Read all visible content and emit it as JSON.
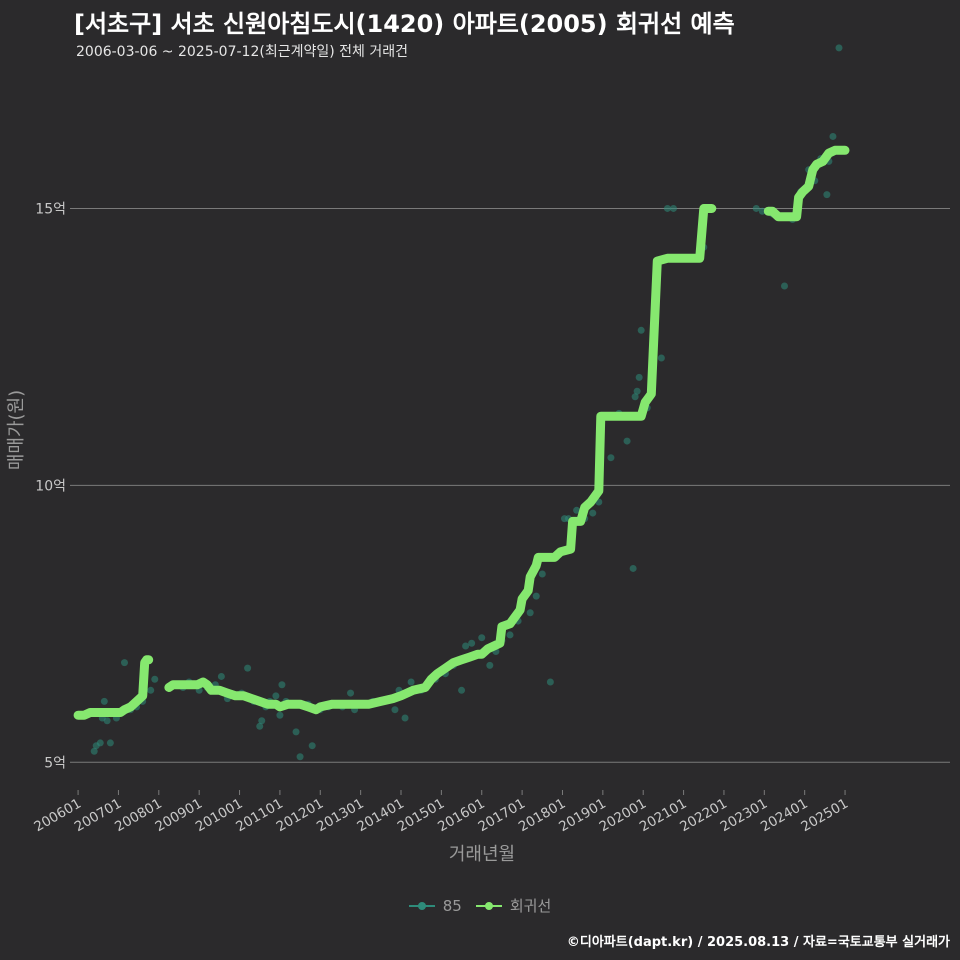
{
  "header": {
    "title": "[서초구] 서초 신원아침도시(1420) 아파트(2005) 회귀선 예측",
    "subtitle": "2006-03-06 ~ 2025-07-12(최근계약일) 전체 거래건"
  },
  "caption": "©디아파트(dapt.kr) / 2025.08.13 / 자료=국토교통부 실거래가",
  "colors": {
    "background": "#2b2a2c",
    "grid": "#7a7a7a",
    "scatter": "#2e8b7a",
    "regression": "#86e86f",
    "axis_text": "#c8c8c8"
  },
  "legend": {
    "items": [
      {
        "label": "85",
        "color": "#2e8b7a"
      },
      {
        "label": "회귀선",
        "color": "#86e86f"
      }
    ]
  },
  "chart_data": {
    "type": "scatter",
    "title": "[서초구] 서초 신원아침도시(1420) 아파트(2005) 회귀선 예측",
    "xlabel": "거래년월",
    "ylabel": "매매가(원)",
    "xlim": [
      2005.8,
      2027.6
    ],
    "ylim": [
      4.5,
      17.5
    ],
    "x_ticks": [
      {
        "value": 2006.0,
        "label": "200601"
      },
      {
        "value": 2007.0,
        "label": "200701"
      },
      {
        "value": 2008.0,
        "label": "200801"
      },
      {
        "value": 2009.0,
        "label": "200901"
      },
      {
        "value": 2010.0,
        "label": "201001"
      },
      {
        "value": 2011.0,
        "label": "201101"
      },
      {
        "value": 2012.0,
        "label": "201201"
      },
      {
        "value": 2013.0,
        "label": "201301"
      },
      {
        "value": 2014.0,
        "label": "201401"
      },
      {
        "value": 2015.0,
        "label": "201501"
      },
      {
        "value": 2016.0,
        "label": "201601"
      },
      {
        "value": 2017.0,
        "label": "201701"
      },
      {
        "value": 2018.0,
        "label": "201801"
      },
      {
        "value": 2019.0,
        "label": "201901"
      },
      {
        "value": 2020.0,
        "label": "202001"
      },
      {
        "value": 2021.0,
        "label": "202101"
      },
      {
        "value": 2022.0,
        "label": "202201"
      },
      {
        "value": 2023.0,
        "label": "202301"
      },
      {
        "value": 2024.0,
        "label": "202401"
      },
      {
        "value": 2025.0,
        "label": "202501"
      }
    ],
    "y_ticks": [
      {
        "value": 5,
        "label": "5억"
      },
      {
        "value": 10,
        "label": "10억"
      },
      {
        "value": 15,
        "label": "15억"
      }
    ],
    "series": [
      {
        "name": "85",
        "kind": "scatter",
        "points": [
          [
            2006.2,
            5.85
          ],
          [
            2006.35,
            5.9
          ],
          [
            2006.4,
            5.2
          ],
          [
            2006.45,
            5.3
          ],
          [
            2006.55,
            5.35
          ],
          [
            2006.6,
            5.8
          ],
          [
            2006.65,
            6.1
          ],
          [
            2006.72,
            5.75
          ],
          [
            2006.8,
            5.35
          ],
          [
            2006.95,
            5.8
          ],
          [
            2007.15,
            6.8
          ],
          [
            2007.3,
            5.95
          ],
          [
            2007.45,
            6.0
          ],
          [
            2007.6,
            6.1
          ],
          [
            2007.8,
            6.3
          ],
          [
            2007.9,
            6.5
          ],
          [
            2008.6,
            6.35
          ],
          [
            2008.75,
            6.45
          ],
          [
            2009.0,
            6.3
          ],
          [
            2009.2,
            6.35
          ],
          [
            2009.4,
            6.4
          ],
          [
            2009.55,
            6.55
          ],
          [
            2009.7,
            6.15
          ],
          [
            2009.85,
            6.2
          ],
          [
            2010.05,
            6.25
          ],
          [
            2010.2,
            6.7
          ],
          [
            2010.35,
            6.1
          ],
          [
            2010.5,
            5.65
          ],
          [
            2010.55,
            5.75
          ],
          [
            2010.65,
            6.0
          ],
          [
            2010.75,
            6.1
          ],
          [
            2010.9,
            6.2
          ],
          [
            2011.0,
            5.85
          ],
          [
            2011.05,
            6.4
          ],
          [
            2011.15,
            6.1
          ],
          [
            2011.4,
            5.55
          ],
          [
            2011.5,
            5.1
          ],
          [
            2011.7,
            6.05
          ],
          [
            2011.8,
            5.3
          ],
          [
            2012.0,
            5.95
          ],
          [
            2012.2,
            6.0
          ],
          [
            2012.4,
            6.05
          ],
          [
            2012.55,
            6.0
          ],
          [
            2012.75,
            6.25
          ],
          [
            2012.85,
            5.95
          ],
          [
            2013.15,
            6.05
          ],
          [
            2013.3,
            6.1
          ],
          [
            2013.5,
            6.1
          ],
          [
            2013.7,
            6.15
          ],
          [
            2013.85,
            5.95
          ],
          [
            2013.95,
            6.3
          ],
          [
            2014.1,
            5.8
          ],
          [
            2014.25,
            6.45
          ],
          [
            2014.5,
            6.3
          ],
          [
            2014.65,
            6.4
          ],
          [
            2014.85,
            6.5
          ],
          [
            2015.1,
            6.6
          ],
          [
            2015.3,
            6.75
          ],
          [
            2015.5,
            6.3
          ],
          [
            2015.6,
            7.1
          ],
          [
            2015.75,
            7.15
          ],
          [
            2015.95,
            6.95
          ],
          [
            2016.0,
            7.25
          ],
          [
            2016.2,
            6.75
          ],
          [
            2016.35,
            7.0
          ],
          [
            2016.5,
            7.2
          ],
          [
            2016.7,
            7.3
          ],
          [
            2016.9,
            7.55
          ],
          [
            2017.2,
            7.7
          ],
          [
            2017.35,
            8.0
          ],
          [
            2017.5,
            8.4
          ],
          [
            2017.7,
            6.45
          ],
          [
            2017.85,
            8.7
          ],
          [
            2018.05,
            9.4
          ],
          [
            2018.15,
            9.4
          ],
          [
            2018.25,
            9.1
          ],
          [
            2018.35,
            9.55
          ],
          [
            2018.55,
            9.4
          ],
          [
            2018.75,
            9.5
          ],
          [
            2018.9,
            9.7
          ],
          [
            2019.2,
            10.5
          ],
          [
            2019.4,
            11.3
          ],
          [
            2019.6,
            10.8
          ],
          [
            2019.75,
            8.5
          ],
          [
            2019.8,
            11.6
          ],
          [
            2019.85,
            11.7
          ],
          [
            2019.9,
            11.95
          ],
          [
            2019.95,
            12.8
          ],
          [
            2020.1,
            11.4
          ],
          [
            2020.45,
            12.3
          ],
          [
            2020.6,
            15.0
          ],
          [
            2020.75,
            15.0
          ],
          [
            2021.5,
            14.3
          ],
          [
            2022.8,
            15.0
          ],
          [
            2022.95,
            14.95
          ],
          [
            2023.2,
            14.9
          ],
          [
            2023.5,
            13.6
          ],
          [
            2023.7,
            14.8
          ],
          [
            2023.9,
            15.3
          ],
          [
            2024.1,
            15.7
          ],
          [
            2024.25,
            15.5
          ],
          [
            2024.4,
            15.9
          ],
          [
            2024.55,
            15.25
          ],
          [
            2024.6,
            15.85
          ],
          [
            2024.7,
            16.3
          ],
          [
            2024.85,
            17.9
          ]
        ]
      },
      {
        "name": "회귀선",
        "kind": "line",
        "segments": [
          [
            [
              2006.0,
              5.85
            ],
            [
              2006.15,
              5.85
            ],
            [
              2006.3,
              5.9
            ],
            [
              2006.5,
              5.9
            ],
            [
              2006.7,
              5.9
            ],
            [
              2006.9,
              5.9
            ],
            [
              2007.05,
              5.9
            ],
            [
              2007.15,
              5.95
            ],
            [
              2007.3,
              6.0
            ],
            [
              2007.45,
              6.1
            ],
            [
              2007.6,
              6.2
            ],
            [
              2007.65,
              6.8
            ],
            [
              2007.7,
              6.85
            ],
            [
              2007.75,
              6.85
            ]
          ],
          [
            [
              2008.25,
              6.35
            ],
            [
              2008.35,
              6.4
            ],
            [
              2008.5,
              6.4
            ],
            [
              2008.65,
              6.4
            ],
            [
              2008.8,
              6.4
            ],
            [
              2008.95,
              6.4
            ],
            [
              2009.1,
              6.45
            ],
            [
              2009.2,
              6.4
            ],
            [
              2009.3,
              6.3
            ],
            [
              2009.5,
              6.3
            ],
            [
              2009.7,
              6.25
            ],
            [
              2009.9,
              6.2
            ],
            [
              2010.1,
              6.2
            ],
            [
              2010.3,
              6.15
            ],
            [
              2010.5,
              6.1
            ],
            [
              2010.7,
              6.05
            ],
            [
              2010.9,
              6.05
            ],
            [
              2011.0,
              6.0
            ],
            [
              2011.2,
              6.05
            ],
            [
              2011.5,
              6.05
            ],
            [
              2011.7,
              6.0
            ],
            [
              2011.9,
              5.95
            ],
            [
              2012.0,
              6.0
            ],
            [
              2012.3,
              6.05
            ],
            [
              2012.6,
              6.05
            ],
            [
              2012.9,
              6.05
            ],
            [
              2013.2,
              6.05
            ],
            [
              2013.5,
              6.1
            ],
            [
              2013.8,
              6.15
            ],
            [
              2014.0,
              6.2
            ],
            [
              2014.3,
              6.3
            ],
            [
              2014.6,
              6.35
            ],
            [
              2014.75,
              6.5
            ],
            [
              2014.9,
              6.6
            ],
            [
              2015.1,
              6.7
            ],
            [
              2015.3,
              6.8
            ],
            [
              2015.5,
              6.85
            ],
            [
              2015.7,
              6.9
            ],
            [
              2015.9,
              6.95
            ],
            [
              2016.0,
              6.95
            ],
            [
              2016.15,
              7.05
            ],
            [
              2016.3,
              7.1
            ],
            [
              2016.45,
              7.15
            ],
            [
              2016.5,
              7.45
            ],
            [
              2016.7,
              7.5
            ],
            [
              2016.8,
              7.6
            ],
            [
              2016.95,
              7.75
            ],
            [
              2017.0,
              7.95
            ],
            [
              2017.15,
              8.1
            ],
            [
              2017.2,
              8.35
            ],
            [
              2017.35,
              8.55
            ],
            [
              2017.4,
              8.7
            ],
            [
              2017.6,
              8.7
            ],
            [
              2017.8,
              8.7
            ],
            [
              2017.95,
              8.8
            ],
            [
              2018.2,
              8.85
            ],
            [
              2018.25,
              9.35
            ],
            [
              2018.45,
              9.35
            ],
            [
              2018.55,
              9.6
            ],
            [
              2018.7,
              9.7
            ],
            [
              2018.9,
              9.9
            ],
            [
              2018.95,
              11.25
            ],
            [
              2019.2,
              11.25
            ],
            [
              2019.5,
              11.25
            ],
            [
              2019.75,
              11.25
            ],
            [
              2019.95,
              11.25
            ],
            [
              2020.05,
              11.5
            ],
            [
              2020.2,
              11.65
            ],
            [
              2020.35,
              14.05
            ],
            [
              2020.6,
              14.1
            ],
            [
              2020.9,
              14.1
            ],
            [
              2021.2,
              14.1
            ],
            [
              2021.4,
              14.1
            ],
            [
              2021.5,
              15.0
            ],
            [
              2021.6,
              15.0
            ],
            [
              2021.7,
              15.0
            ]
          ],
          [
            [
              2023.1,
              14.95
            ],
            [
              2023.2,
              14.95
            ],
            [
              2023.35,
              14.85
            ],
            [
              2023.5,
              14.85
            ],
            [
              2023.65,
              14.85
            ],
            [
              2023.8,
              14.85
            ],
            [
              2023.85,
              15.2
            ],
            [
              2023.95,
              15.3
            ],
            [
              2024.1,
              15.4
            ],
            [
              2024.2,
              15.7
            ],
            [
              2024.3,
              15.8
            ],
            [
              2024.45,
              15.85
            ],
            [
              2024.6,
              16.0
            ],
            [
              2024.75,
              16.05
            ],
            [
              2024.9,
              16.05
            ],
            [
              2025.0,
              16.05
            ]
          ]
        ]
      }
    ]
  }
}
